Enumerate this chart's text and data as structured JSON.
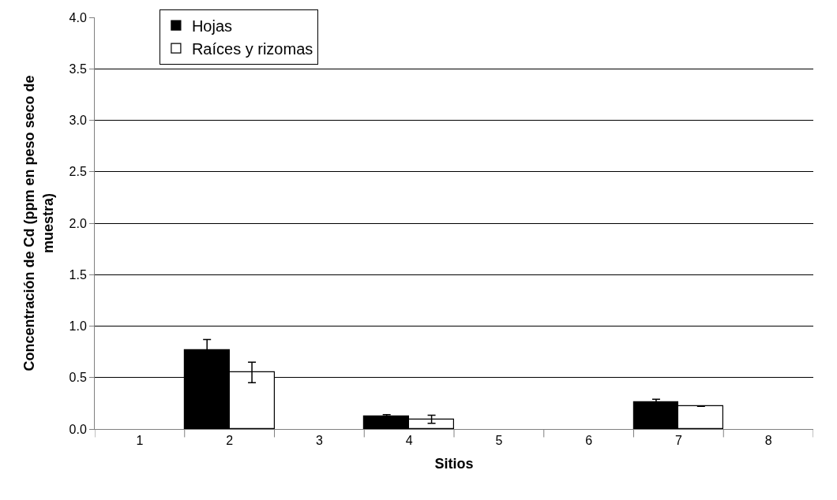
{
  "chart_data": {
    "type": "bar",
    "xlabel": "Sitios",
    "ylabel": "Concentración de Cd (ppm en peso seco de muestra)",
    "categories": [
      "1",
      "2",
      "3",
      "4",
      "5",
      "6",
      "7",
      "8"
    ],
    "series": [
      {
        "name": "Hojas",
        "color": "#000000",
        "values": [
          null,
          0.77,
          null,
          0.12,
          null,
          null,
          0.26,
          null
        ],
        "errors": [
          null,
          0.1,
          null,
          0.02,
          null,
          null,
          0.03,
          null
        ]
      },
      {
        "name": "Raíces y rizomas",
        "color": "#ffffff",
        "values": [
          null,
          0.55,
          null,
          0.095,
          null,
          null,
          0.22,
          null
        ],
        "errors": [
          null,
          0.1,
          null,
          0.04,
          null,
          null,
          null,
          null
        ]
      }
    ],
    "ylim": [
      0,
      4
    ],
    "yticks": [
      {
        "value": 0,
        "label": "0.0"
      },
      {
        "value": 0.5,
        "label": "0.5"
      },
      {
        "value": 1,
        "label": "1.0"
      },
      {
        "value": 1.5,
        "label": "1.5"
      },
      {
        "value": 2,
        "label": "2.0"
      },
      {
        "value": 2.5,
        "label": "2.5"
      },
      {
        "value": 3,
        "label": "3.0"
      },
      {
        "value": 3.5,
        "label": "3.5"
      },
      {
        "value": 4,
        "label": "4.0"
      }
    ],
    "grid": "y",
    "legend": "top left"
  }
}
